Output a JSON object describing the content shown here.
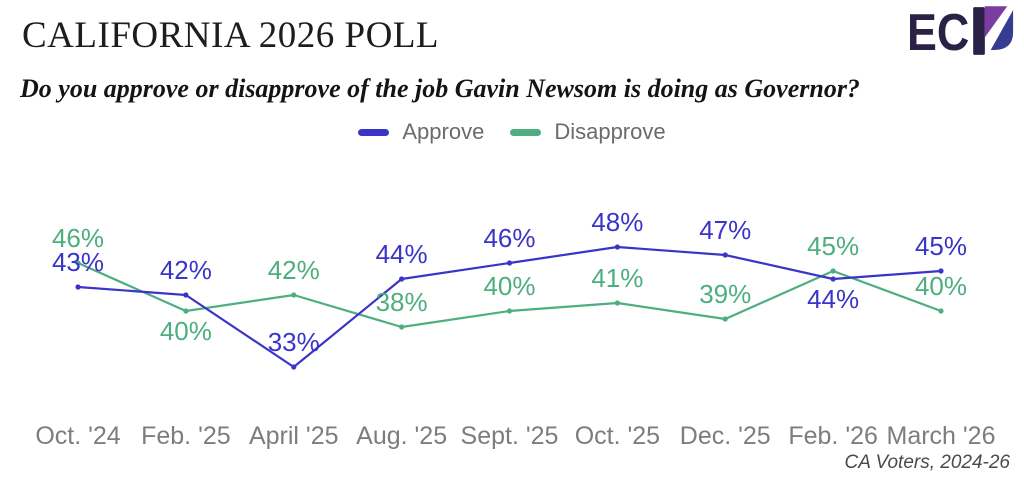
{
  "header": {
    "logo": {
      "ec_text": "EC",
      "dark": "#2b2046",
      "purple": "#7b3da0",
      "navy": "#363c92"
    }
  },
  "chart_data": {
    "type": "line",
    "title": "CALIFORNIA 2026 POLL",
    "subtitle": "Do you approve or disapprove of the job Gavin Newsom is doing as Governor?",
    "source": "CA Voters, 2024-26",
    "categories": [
      "Oct. '24",
      "Feb. '25",
      "April '25",
      "Aug. '25",
      "Sept. '25",
      "Oct. '25",
      "Dec. '25",
      "Feb. '26",
      "March '26"
    ],
    "series": [
      {
        "name": "Approve",
        "color": "#3a34c8",
        "values": [
          43,
          42,
          33,
          44,
          46,
          48,
          47,
          44,
          45
        ],
        "label_positions": [
          "above",
          "above",
          "above",
          "above",
          "above",
          "above",
          "above",
          "below",
          "above"
        ]
      },
      {
        "name": "Disapprove",
        "color": "#4dae7f",
        "values": [
          46,
          40,
          42,
          38,
          40,
          41,
          39,
          45,
          40
        ],
        "label_positions": [
          "above",
          "below",
          "above",
          "above",
          "above",
          "above",
          "above",
          "above",
          "above"
        ]
      }
    ],
    "xlabel": "",
    "ylabel": "",
    "ylim": [
      30,
      52
    ],
    "grid": false,
    "legend_position": "top",
    "data_labels": true,
    "label_format": "{v}%"
  }
}
